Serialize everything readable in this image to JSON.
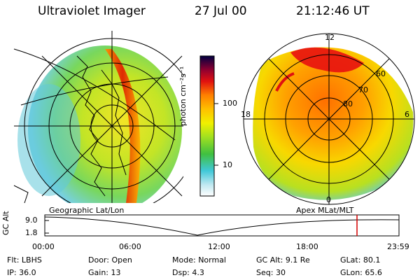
{
  "header": {
    "instrument": "Ultraviolet Imager",
    "date": "27 Jul 00",
    "time": "21:12:46 UT"
  },
  "colorbar": {
    "unit_label": "photon cm⁻²s⁻¹",
    "ticks": [
      "100",
      "10"
    ]
  },
  "geo_panel": {
    "label": "Geographic Lat/Lon"
  },
  "polar_panel": {
    "label": "Apex MLat/MLT",
    "mlt_labels": [
      "12",
      "18",
      "6",
      "0"
    ],
    "lat_labels": [
      "60",
      "70",
      "80"
    ]
  },
  "altitude_strip": {
    "ylabel": "GC Alt",
    "yticks": [
      "9.0",
      "1.8"
    ],
    "xticks": [
      "00:00",
      "06:00",
      "12:00",
      "18:00",
      "23:59"
    ],
    "marker_color": "#d40000"
  },
  "info": {
    "row1": [
      {
        "key": "Flt:",
        "value": "LBHS"
      },
      {
        "key": "Door:",
        "value": "Open"
      },
      {
        "key": "Mode:",
        "value": "Normal"
      },
      {
        "key": "GC Alt:",
        "value": "9.1 Re"
      },
      {
        "key": "GLat:",
        "value": "80.1"
      }
    ],
    "row2": [
      {
        "key": "IP:",
        "value": "36.0"
      },
      {
        "key": "Gain:",
        "value": "13"
      },
      {
        "key": "Dsp:",
        "value": "4.3"
      },
      {
        "key": "Seq:",
        "value": "30"
      },
      {
        "key": "GLon:",
        "value": "65.6"
      }
    ]
  }
}
